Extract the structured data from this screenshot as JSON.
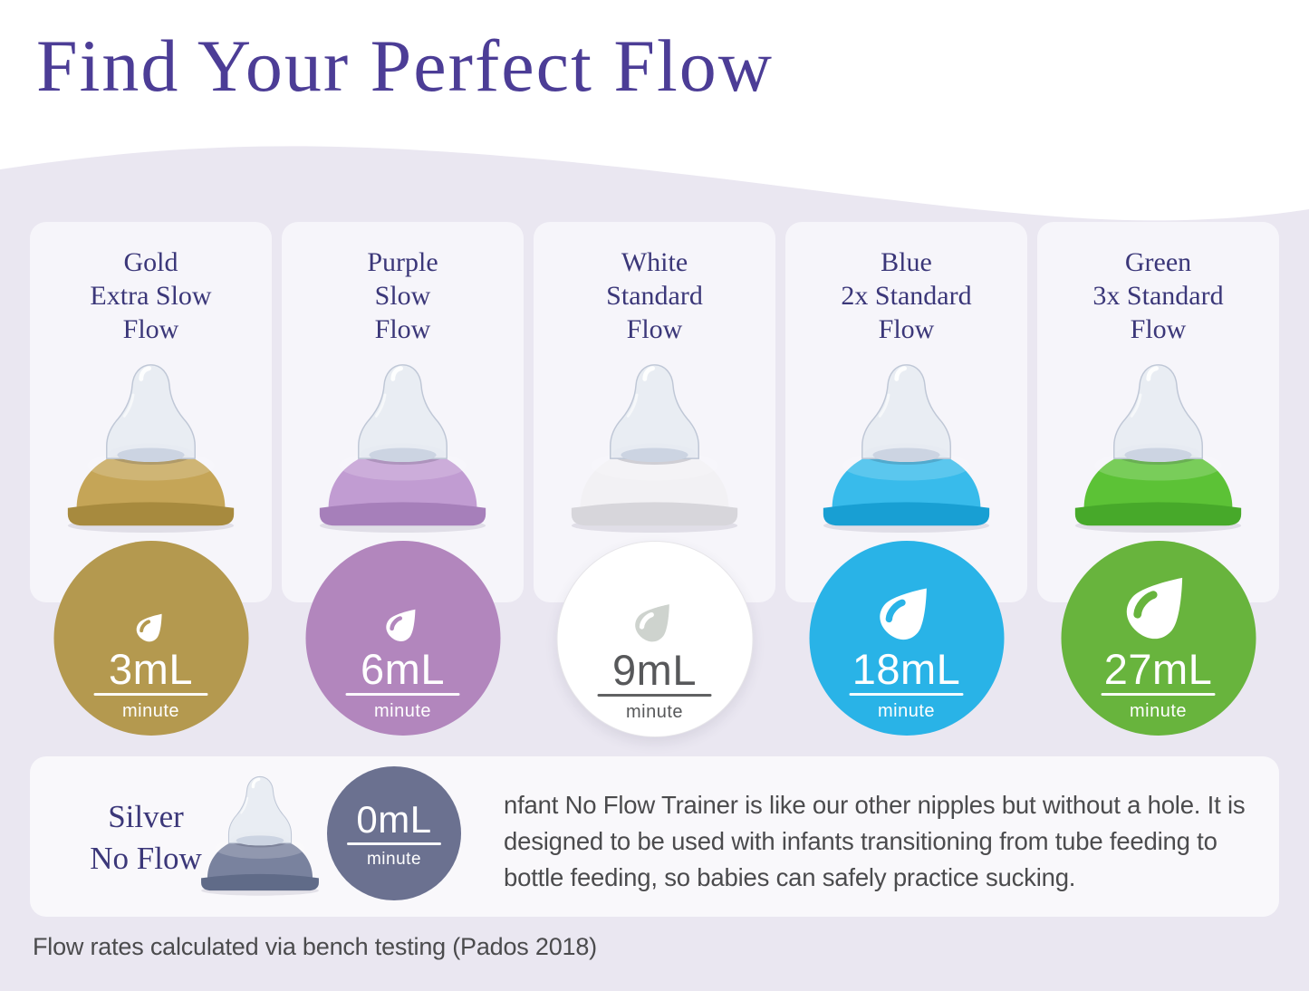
{
  "header": {
    "title": "Find Your Perfect Flow"
  },
  "unit_label": "minute",
  "footnote": "Flow rates calculated via bench testing (Pados 2018)",
  "colors": {
    "page_background": "#eae7f1",
    "card_background": "#f6f5fa",
    "title_text": "#4c3d96",
    "heading_text": "#3b3779",
    "body_text": "#4b4b4d"
  },
  "columns": [
    {
      "id": "gold-extra-slow",
      "title_lines": [
        "Gold",
        "Extra Slow",
        "Flow"
      ],
      "rate": "3mL",
      "drop_icon": "water-drop",
      "drop_size": 40,
      "badge_color": "#b4994f",
      "badge_text_color": "#ffffff",
      "drop_fill": "#ffffff",
      "collar_color": "#c5a557",
      "collar_dark": "#a78a3e"
    },
    {
      "id": "purple-slow",
      "title_lines": [
        "Purple",
        "Slow",
        "Flow"
      ],
      "rate": "6mL",
      "drop_icon": "water-drop",
      "drop_size": 46,
      "badge_color": "#b286bd",
      "badge_text_color": "#ffffff",
      "drop_fill": "#ffffff",
      "collar_color": "#c19cd2",
      "collar_dark": "#a67fba"
    },
    {
      "id": "white-standard",
      "title_lines": [
        "White",
        "Standard",
        "Flow"
      ],
      "rate": "9mL",
      "drop_icon": "water-drop",
      "drop_size": 54,
      "badge_color": "#ffffff",
      "badge_text_color": "#57585a",
      "badge_border": "#e6e5e9",
      "drop_fill": "#ced3ce",
      "collar_color": "#f2f1f4",
      "collar_dark": "#d7d6db"
    },
    {
      "id": "blue-2x-standard",
      "title_lines": [
        "Blue",
        "2x Standard",
        "Flow"
      ],
      "rate": "18mL",
      "drop_icon": "water-drop",
      "drop_size": 74,
      "badge_color": "#29b3e7",
      "badge_text_color": "#ffffff",
      "drop_fill": "#ffffff",
      "collar_color": "#38bbeb",
      "collar_dark": "#189fd3"
    },
    {
      "id": "green-3x-standard",
      "title_lines": [
        "Green",
        "3x Standard",
        "Flow"
      ],
      "rate": "27mL",
      "drop_icon": "water-drop",
      "drop_size": 88,
      "badge_color": "#68b43d",
      "badge_text_color": "#ffffff",
      "drop_fill": "#ffffff",
      "collar_color": "#5cc236",
      "collar_dark": "#47a92a"
    }
  ],
  "trainer": {
    "id": "silver-no-flow",
    "title_lines": [
      "Silver",
      "No Flow"
    ],
    "rate": "0mL",
    "badge_color": "#6b7190",
    "badge_text_color": "#ffffff",
    "collar_color": "#79829e",
    "collar_dark": "#606b88",
    "description": "nfant No Flow Trainer is like our other nipples but without a hole. It is designed to be used with infants transitioning from tube feeding to bottle feeding, so babies can safely practice sucking."
  }
}
